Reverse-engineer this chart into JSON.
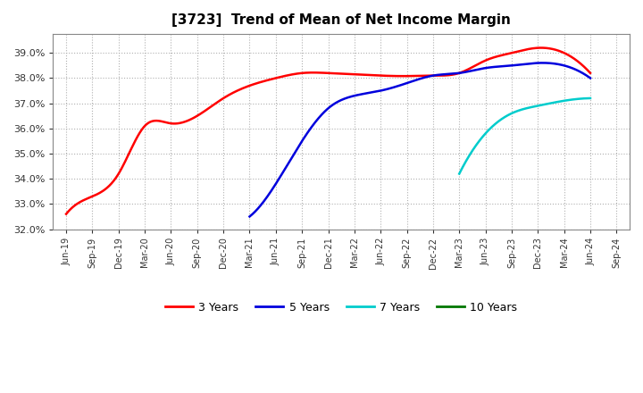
{
  "title": "[3723]  Trend of Mean of Net Income Margin",
  "ylim": [
    0.32,
    0.3975
  ],
  "yticks": [
    0.32,
    0.33,
    0.34,
    0.35,
    0.36,
    0.37,
    0.38,
    0.39
  ],
  "background_color": "#ffffff",
  "plot_bg_color": "#ffffff",
  "grid_color": "#b0b0b0",
  "x_labels": [
    "Jun-19",
    "Sep-19",
    "Dec-19",
    "Mar-20",
    "Jun-20",
    "Sep-20",
    "Dec-20",
    "Mar-21",
    "Jun-21",
    "Sep-21",
    "Dec-21",
    "Mar-22",
    "Jun-22",
    "Sep-22",
    "Dec-22",
    "Mar-23",
    "Jun-23",
    "Sep-23",
    "Dec-23",
    "Mar-24",
    "Jun-24",
    "Sep-24"
  ],
  "series_3y": {
    "label": "3 Years",
    "color": "#ff0000",
    "data": [
      0.326,
      0.333,
      0.342,
      0.361,
      0.362,
      0.365,
      0.372,
      0.377,
      0.38,
      0.382,
      0.382,
      0.3815,
      0.381,
      0.3808,
      0.381,
      0.382,
      0.387,
      0.39,
      0.392,
      0.39,
      0.382,
      null
    ]
  },
  "series_5y": {
    "label": "5 Years",
    "color": "#0000dd",
    "data": [
      null,
      null,
      null,
      null,
      null,
      null,
      null,
      0.325,
      0.338,
      0.355,
      0.368,
      0.373,
      0.375,
      0.378,
      0.381,
      0.382,
      0.384,
      0.385,
      0.386,
      0.385,
      0.38,
      null
    ]
  },
  "series_7y": {
    "label": "7 Years",
    "color": "#00cccc",
    "data": [
      null,
      null,
      null,
      null,
      null,
      null,
      null,
      null,
      null,
      null,
      null,
      null,
      null,
      null,
      null,
      0.342,
      0.358,
      0.366,
      0.369,
      0.371,
      0.372,
      null
    ]
  },
  "series_10y": {
    "label": "10 Years",
    "color": "#007700",
    "data": [
      null,
      null,
      null,
      null,
      null,
      null,
      null,
      null,
      null,
      null,
      null,
      null,
      null,
      null,
      null,
      null,
      null,
      null,
      null,
      null,
      null,
      null
    ]
  },
  "legend_colors": [
    "#ff0000",
    "#0000dd",
    "#00cccc",
    "#007700"
  ],
  "legend_labels": [
    "3 Years",
    "5 Years",
    "7 Years",
    "10 Years"
  ]
}
